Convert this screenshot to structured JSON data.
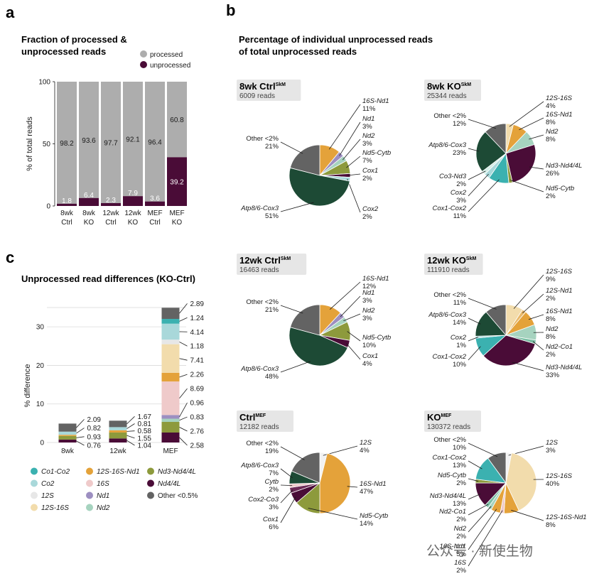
{
  "panels": {
    "a": {
      "letter": "a",
      "title_line1": "Fraction of processed &",
      "title_line2": "unprocessed reads"
    },
    "b": {
      "letter": "b",
      "title_line1": "Percentage of individual unprocessed reads",
      "title_line2": "of total unprocessed reads"
    },
    "c": {
      "letter": "c",
      "title": "Unprocessed read differences (KO-Ctrl)"
    }
  },
  "colors": {
    "processed": "#adadad",
    "unprocessed": "#4a0c37",
    "Co1-Co2": "#3bb1b0",
    "Co2": "#a9d8da",
    "12S": "#e7e7e7",
    "12S-16S": "#f2dcac",
    "12S-16S-Nd1": "#e4a23a",
    "16S": "#efcaca",
    "Nd1": "#9d8fc1",
    "Nd2": "#a6d3bf",
    "Nd3-Nd4/4L": "#8d9a3c",
    "Nd4/4L": "#4a0c37",
    "Other <0.5%": "#636363",
    "16S-Nd1": "#e4a23a",
    "Nd5-Cytb": "#8d9a3c",
    "Cox1": "#4a0c37",
    "Cox2": "#a9d8da",
    "Atp8/6-Cox3": "#1d4a35",
    "Other": "#636363",
    "Co3-Nd3": "#d3ede6",
    "Cox1-Cox2": "#3bb1b0",
    "Nd3-Nd4/4L_pie": "#4a0c37",
    "Nd2-Co1": "#a6d3bf",
    "Cytb": "#efcaca",
    "Cox2-Co3": "#4a0c37",
    "12S_pie": "#f2f2f2"
  },
  "chart_data": [
    {
      "id": "a",
      "type": "bar",
      "stacked": true,
      "title": "Fraction of processed & unprocessed reads",
      "categories": [
        [
          "8wk",
          "Ctrl"
        ],
        [
          "8wk",
          "KO"
        ],
        [
          "12wk",
          "Ctrl"
        ],
        [
          "12wk",
          "KO"
        ],
        [
          "MEF",
          "Ctrl"
        ],
        [
          "MEF",
          "KO"
        ]
      ],
      "series": [
        {
          "name": "unprocessed",
          "values": [
            1.8,
            6.4,
            2.3,
            7.9,
            3.6,
            39.2
          ],
          "labels": [
            "1.8",
            "6.4",
            "2.3",
            "7.9",
            "3.6",
            "39.2"
          ]
        },
        {
          "name": "processed",
          "values": [
            98.2,
            93.6,
            97.7,
            92.1,
            96.4,
            60.8
          ],
          "labels": [
            "98.2",
            "93.6",
            "97.7",
            "92.1",
            "96.4",
            "60.8"
          ]
        }
      ],
      "ylabel": "% of total reads",
      "ylim": [
        0,
        100
      ],
      "yticks": [
        "0",
        "50",
        "100"
      ],
      "legend": [
        "processed",
        "unprocessed"
      ],
      "legend_position": "top-right"
    },
    {
      "id": "c",
      "type": "bar",
      "stacked": true,
      "title": "Unprocessed read differences (KO-Ctrl)",
      "categories": [
        "8wk",
        "12wk",
        "MEF"
      ],
      "ylabel": "% difference",
      "ylim": [
        0,
        35
      ],
      "yticks": [
        "0",
        "10",
        "20",
        "30"
      ],
      "stacks": [
        {
          "category": "8wk",
          "segments": [
            {
              "name": "Nd4/4L",
              "value": 0.76
            },
            {
              "name": "Nd3-Nd4/4L",
              "value": 0.93
            },
            {
              "name": "12S-16S-Nd1",
              "value": 0.3
            },
            {
              "name": "Co2",
              "value": 0.82
            },
            {
              "name": "Other <0.5%",
              "value": 2.09
            }
          ],
          "labels": [
            "0.76",
            "0.93",
            "0.82",
            "2.09"
          ]
        },
        {
          "category": "12wk",
          "segments": [
            {
              "name": "Nd4/4L",
              "value": 1.04
            },
            {
              "name": "Nd3-Nd4/4L",
              "value": 1.55
            },
            {
              "name": "12S-16S-Nd1",
              "value": 0.58
            },
            {
              "name": "Co2",
              "value": 0.81
            },
            {
              "name": "Other <0.5%",
              "value": 1.67
            }
          ],
          "labels": [
            "1.04",
            "1.55",
            "0.58",
            "0.81",
            "1.67"
          ]
        },
        {
          "category": "MEF",
          "segments": [
            {
              "name": "Nd4/4L",
              "value": 2.58
            },
            {
              "name": "Nd3-Nd4/4L",
              "value": 2.76
            },
            {
              "name": "Nd2",
              "value": 0.83
            },
            {
              "name": "Nd1",
              "value": 0.96
            },
            {
              "name": "16S",
              "value": 8.69
            },
            {
              "name": "12S-16S-Nd1",
              "value": 2.26
            },
            {
              "name": "12S-16S",
              "value": 7.41
            },
            {
              "name": "12S",
              "value": 1.18
            },
            {
              "name": "Co2",
              "value": 4.14
            },
            {
              "name": "Co1-Co2",
              "value": 1.24
            },
            {
              "name": "Other <0.5%",
              "value": 2.89
            }
          ],
          "labels": [
            "2.58",
            "2.76",
            "0.83",
            "0.96",
            "8.69",
            "2.26",
            "7.41",
            "1.18",
            "4.14",
            "1.24",
            "2.89"
          ]
        }
      ],
      "legend": [
        "Co1-Co2",
        "Co2",
        "12S",
        "12S-16S",
        "12S-16S-Nd1",
        "16S",
        "Nd1",
        "Nd2",
        "Nd3-Nd4/4L",
        "Nd4/4L",
        "Other <0.5%"
      ],
      "legend_position": "bottom"
    },
    {
      "id": "b1",
      "type": "pie",
      "title": "8wk Ctrl",
      "title_sup": "SkM",
      "reads": "6009 reads",
      "slices": [
        {
          "name": "16S-Nd1",
          "value": 11,
          "label": "11%"
        },
        {
          "name": "Nd1",
          "value": 3,
          "label": "3%"
        },
        {
          "name": "Nd2",
          "value": 3,
          "label": "3%"
        },
        {
          "name": "Nd5-Cytb",
          "value": 7,
          "label": "7%"
        },
        {
          "name": "Cox1",
          "value": 2,
          "label": "2%"
        },
        {
          "name": "Cox2",
          "value": 2,
          "label": "2%"
        },
        {
          "name": "Atp8/6-Cox3",
          "value": 51,
          "label": "51%"
        },
        {
          "name": "Other <2%",
          "value": 21,
          "label": "21%"
        }
      ]
    },
    {
      "id": "b2",
      "type": "pie",
      "title": "8wk KO",
      "title_sup": "SkM",
      "reads": "25344 reads",
      "slices": [
        {
          "name": "12S-16S",
          "value": 4,
          "label": "4%"
        },
        {
          "name": "16S-Nd1",
          "value": 8,
          "label": "8%"
        },
        {
          "name": "Nd2",
          "value": 8,
          "label": "8%"
        },
        {
          "name": "Nd3-Nd4/4L",
          "value": 26,
          "label": "26%"
        },
        {
          "name": "Nd5-Cytb",
          "value": 2,
          "label": "2%"
        },
        {
          "name": "Cox1-Cox2",
          "value": 11,
          "label": "11%"
        },
        {
          "name": "Cox2",
          "value": 3,
          "label": "3%"
        },
        {
          "name": "Co3-Nd3",
          "value": 2,
          "label": "2%"
        },
        {
          "name": "Atp8/6-Cox3",
          "value": 23,
          "label": "23%"
        },
        {
          "name": "Other <2%",
          "value": 12,
          "label": "12%"
        }
      ]
    },
    {
      "id": "b3",
      "type": "pie",
      "title": "12wk Ctrl",
      "title_sup": "SkM",
      "reads": "16463 reads",
      "slices": [
        {
          "name": "16S-Nd1",
          "value": 12,
          "label": "12%"
        },
        {
          "name": "Nd1",
          "value": 3,
          "label": "3%"
        },
        {
          "name": "Nd2",
          "value": 3,
          "label": "3%"
        },
        {
          "name": "Nd5-Cytb",
          "value": 10,
          "label": "10%"
        },
        {
          "name": "Cox1",
          "value": 4,
          "label": "4%"
        },
        {
          "name": "Atp8/6-Cox3",
          "value": 48,
          "label": "48%"
        },
        {
          "name": "Other <2%",
          "value": 21,
          "label": "21%"
        }
      ]
    },
    {
      "id": "b4",
      "type": "pie",
      "title": "12wk KO",
      "title_sup": "SkM",
      "reads": "111910 reads",
      "slices": [
        {
          "name": "12S-16S",
          "value": 9,
          "label": "9%"
        },
        {
          "name": "12S-Nd1",
          "value": 2,
          "label": "2%"
        },
        {
          "name": "16S-Nd1",
          "value": 8,
          "label": "8%"
        },
        {
          "name": "Nd2",
          "value": 8,
          "label": "8%"
        },
        {
          "name": "Nd2-Co1",
          "value": 2,
          "label": "2%"
        },
        {
          "name": "Nd3-Nd4/4L",
          "value": 33,
          "label": "33%"
        },
        {
          "name": "Cox1-Cox2",
          "value": 10,
          "label": "10%"
        },
        {
          "name": "Cox2",
          "value": 1,
          "label": "1%"
        },
        {
          "name": "Atp8/6-Cox3",
          "value": 14,
          "label": "14%"
        },
        {
          "name": "Other <2%",
          "value": 11,
          "label": "11%"
        }
      ]
    },
    {
      "id": "b5",
      "type": "pie",
      "title": "Ctrl",
      "title_sup": "MEF",
      "reads": "12182 reads",
      "slices": [
        {
          "name": "12S",
          "value": 4,
          "label": "4%"
        },
        {
          "name": "16S-Nd1",
          "value": 47,
          "label": "47%"
        },
        {
          "name": "Nd5-Cytb",
          "value": 14,
          "label": "14%"
        },
        {
          "name": "Cox1",
          "value": 6,
          "label": "6%"
        },
        {
          "name": "Cox2-Co3",
          "value": 3,
          "label": "3%"
        },
        {
          "name": "Cytb",
          "value": 2,
          "label": "2%"
        },
        {
          "name": "Atp8/6-Cox3",
          "value": 7,
          "label": "7%"
        },
        {
          "name": "Other <2%",
          "value": 19,
          "label": "19%"
        }
      ]
    },
    {
      "id": "b6",
      "type": "pie",
      "title": "KO",
      "title_sup": "MEF",
      "reads": "130372 reads",
      "slices": [
        {
          "name": "12S",
          "value": 3,
          "label": "3%"
        },
        {
          "name": "12S-16S",
          "value": 40,
          "label": "40%"
        },
        {
          "name": "12S-16S-Nd1",
          "value": 8,
          "label": "8%"
        },
        {
          "name": "16S",
          "value": 2,
          "label": "2%"
        },
        {
          "name": "16S-Nd1",
          "value": 5,
          "label": "5%"
        },
        {
          "name": "Nd2",
          "value": 2,
          "label": "2%"
        },
        {
          "name": "Nd2-Co1",
          "value": 2,
          "label": "2%"
        },
        {
          "name": "Nd3-Nd4/4L",
          "value": 13,
          "label": "13%"
        },
        {
          "name": "Nd5-Cytb",
          "value": 2,
          "label": "2%"
        },
        {
          "name": "Cox1-Cox2",
          "value": 13,
          "label": "13%"
        },
        {
          "name": "Other <2%",
          "value": 10,
          "label": "10%"
        }
      ]
    }
  ],
  "watermark": "公众号 · 新使生物"
}
